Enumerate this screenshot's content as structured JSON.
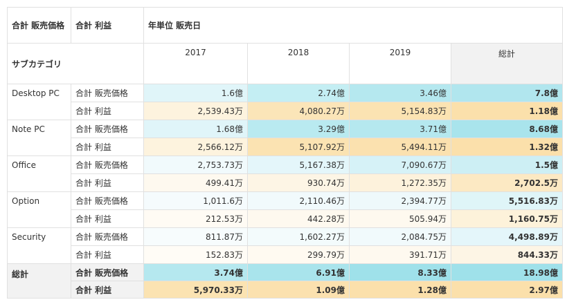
{
  "header": {
    "row_fields": [
      "合計 販売価格",
      "合計 利益"
    ],
    "column_field": "年単位 販売日",
    "row_label": "サブカテゴリ",
    "columns": [
      "2017",
      "2018",
      "2019",
      "総計"
    ]
  },
  "table": {
    "groups": [
      {
        "name": "Desktop PC",
        "rows": [
          {
            "measure": "合計 販売価格",
            "values": [
              "1.6億",
              "2.74億",
              "3.46億",
              "7.8億"
            ],
            "colors": [
              "#e0f5f9",
              "#c4eef3",
              "#b5e8ef",
              "#b1e6ee"
            ]
          },
          {
            "measure": "合計 利益",
            "values": [
              "2,539.43万",
              "4,080.27万",
              "5,154.83万",
              "1.18億"
            ],
            "colors": [
              "#fdf3de",
              "#fbe5b8",
              "#fbe3b2",
              "#fbe0ab"
            ]
          }
        ]
      },
      {
        "name": "Note PC",
        "rows": [
          {
            "measure": "合計 販売価格",
            "values": [
              "1.68億",
              "3.29億",
              "3.71億",
              "8.68億"
            ],
            "colors": [
              "#e0f5f9",
              "#b9eaf0",
              "#b5e8ef",
              "#a9e4ec"
            ]
          },
          {
            "measure": "合計 利益",
            "values": [
              "2,566.12万",
              "5,107.92万",
              "5,494.11万",
              "1.32億"
            ],
            "colors": [
              "#fdf3de",
              "#fbe3b2",
              "#fbe1af",
              "#fbe0ab"
            ]
          }
        ]
      },
      {
        "name": "Office",
        "rows": [
          {
            "measure": "合計 販売価格",
            "values": [
              "2,753.73万",
              "5,167.38万",
              "7,090.67万",
              "1.5億"
            ],
            "colors": [
              "#f1fafc",
              "#e4f6fa",
              "#d6f2f7",
              "#cdeff4"
            ]
          },
          {
            "measure": "合計 利益",
            "values": [
              "499.41万",
              "930.74万",
              "1,272.35万",
              "2,702.5万"
            ],
            "colors": [
              "#fef9ef",
              "#fdf5e5",
              "#fdf2dc",
              "#fce9c3"
            ]
          }
        ]
      },
      {
        "name": "Option",
        "rows": [
          {
            "measure": "合計 販売価格",
            "values": [
              "1,011.6万",
              "2,110.46万",
              "2,394.77万",
              "5,516.83万"
            ],
            "colors": [
              "#f5fbfd",
              "#f1fafc",
              "#eef9fb",
              "#dff5f8"
            ]
          },
          {
            "measure": "合計 利益",
            "values": [
              "212.53万",
              "442.28万",
              "505.94万",
              "1,160.75万"
            ],
            "colors": [
              "#fffbf4",
              "#fef9ef",
              "#fef9ef",
              "#fdf2da"
            ]
          }
        ]
      },
      {
        "name": "Security",
        "rows": [
          {
            "measure": "合計 販売価格",
            "values": [
              "811.87万",
              "1,602.27万",
              "2,084.75万",
              "4,498.89万"
            ],
            "colors": [
              "#f7fcfd",
              "#f3fbfc",
              "#f1fafc",
              "#e4f6fa"
            ]
          },
          {
            "measure": "合計 利益",
            "values": [
              "152.83万",
              "299.79万",
              "391.71万",
              "844.33万"
            ],
            "colors": [
              "#fffcf6",
              "#fffaf1",
              "#fef9ef",
              "#fdf5e5"
            ]
          }
        ]
      },
      {
        "name": "総計",
        "rows": [
          {
            "measure": "合計 販売価格",
            "values": [
              "3.74億",
              "6.91億",
              "8.33億",
              "18.98億"
            ],
            "colors": [
              "#b5e8ef",
              "#a9e4ec",
              "#9fe1ea",
              "#9fe1ea"
            ]
          },
          {
            "measure": "合計 利益",
            "values": [
              "5,970.33万",
              "1.09億",
              "1.28億",
              "2.97億"
            ],
            "colors": [
              "#fbe3b2",
              "#fbe1af",
              "#fbe0ab",
              "#fbe0ab"
            ]
          }
        ]
      }
    ]
  }
}
